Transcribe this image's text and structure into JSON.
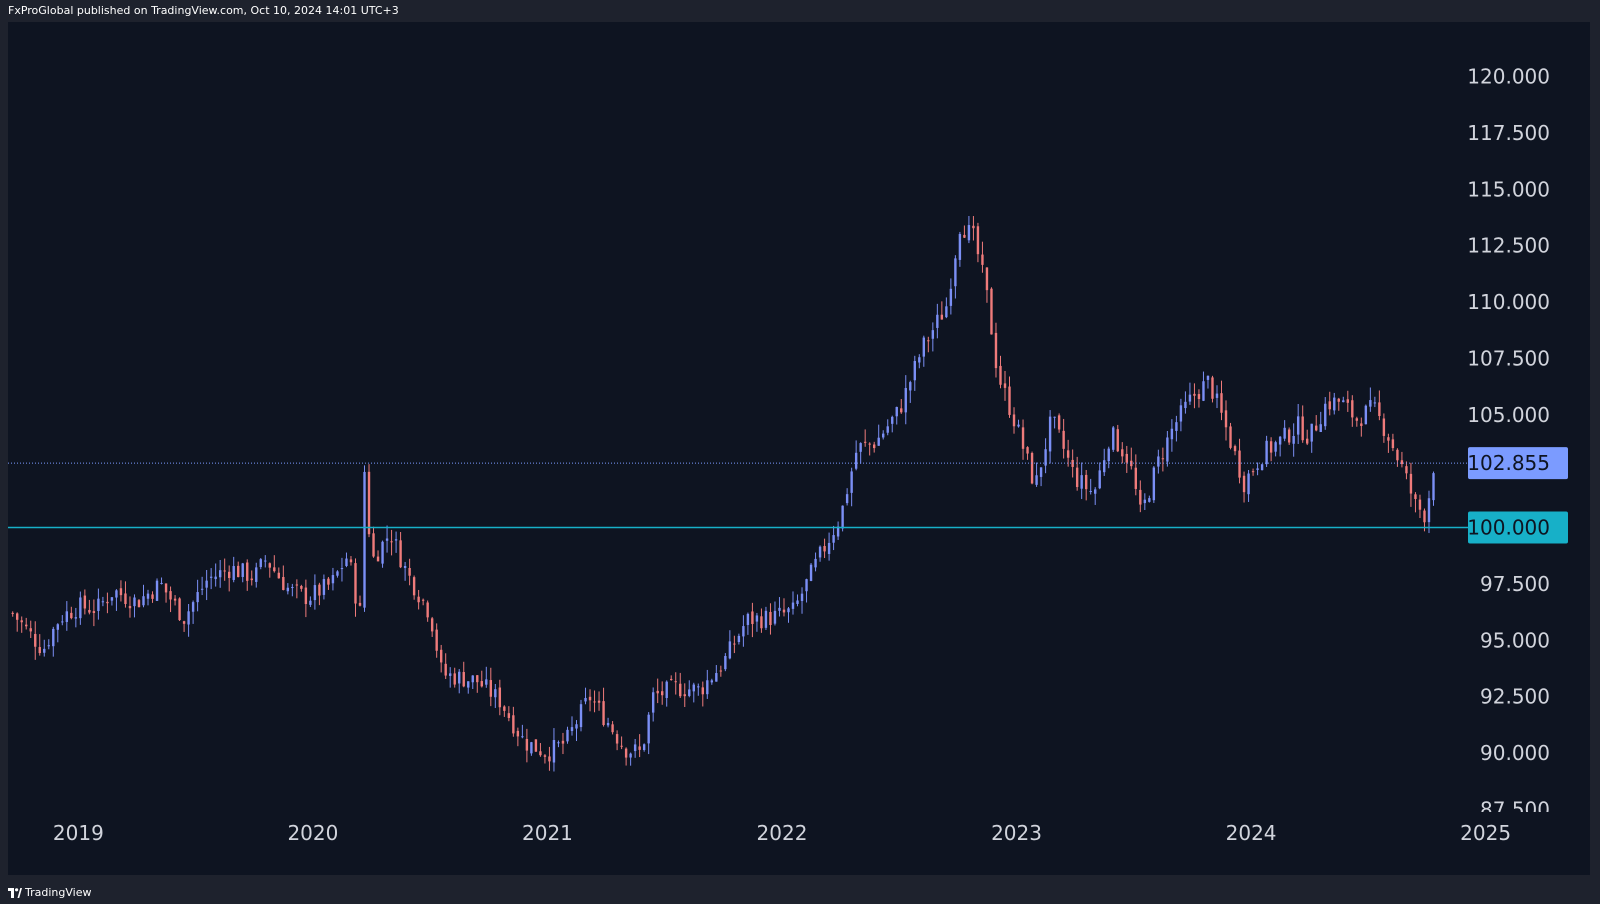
{
  "header": {
    "publish_note": "FxProGlobal published on TradingView.com, Oct 10, 2024 14:01 UTC+3"
  },
  "footer": {
    "brand": "TradingView"
  },
  "colors": {
    "up": "#7b8ff5",
    "down": "#ef7b7b",
    "panel_bg": "#0e1421",
    "axis_text": "#d1d4dc",
    "level_line": "#17b0c8",
    "last_price_bg": "#7b9bff"
  },
  "chart_data": {
    "type": "candlestick",
    "title": "",
    "xlabel": "",
    "ylabel": "",
    "ylim": [
      87.5,
      122.0
    ],
    "xlim": [
      2018.7,
      2025.3
    ],
    "grid": false,
    "y_ticks": [
      "120.000",
      "117.500",
      "115.000",
      "112.500",
      "110.000",
      "107.500",
      "105.000",
      "102.500",
      "100.000",
      "97.500",
      "95.000",
      "92.500",
      "90.000",
      "87.500"
    ],
    "x_ticks": [
      {
        "label": "2019",
        "x": 2019.0
      },
      {
        "label": "2020",
        "x": 2020.0
      },
      {
        "label": "2021",
        "x": 2021.0
      },
      {
        "label": "2022",
        "x": 2022.0
      },
      {
        "label": "2023",
        "x": 2023.0
      },
      {
        "label": "2024",
        "x": 2024.0
      },
      {
        "label": "2025",
        "x": 2025.0
      }
    ],
    "last_price": {
      "value": 102.855,
      "label": "102.855"
    },
    "level": {
      "value": 100.0,
      "label": "100.000"
    },
    "anchors": [
      [
        2018.72,
        96.2
      ],
      [
        2018.8,
        95.2
      ],
      [
        2018.85,
        94.6
      ],
      [
        2018.92,
        96.0
      ],
      [
        2019.0,
        96.5
      ],
      [
        2019.08,
        96.4
      ],
      [
        2019.15,
        97.2
      ],
      [
        2019.25,
        96.7
      ],
      [
        2019.35,
        97.5
      ],
      [
        2019.45,
        96.0
      ],
      [
        2019.55,
        97.7
      ],
      [
        2019.65,
        98.2
      ],
      [
        2019.75,
        97.8
      ],
      [
        2019.8,
        98.6
      ],
      [
        2019.9,
        97.2
      ],
      [
        2019.98,
        96.9
      ],
      [
        2020.08,
        97.5
      ],
      [
        2020.15,
        98.8
      ],
      [
        2020.2,
        96.0
      ],
      [
        2020.22,
        102.5
      ],
      [
        2020.25,
        98.5
      ],
      [
        2020.33,
        99.8
      ],
      [
        2020.4,
        98.0
      ],
      [
        2020.5,
        96.2
      ],
      [
        2020.55,
        93.5
      ],
      [
        2020.7,
        93.2
      ],
      [
        2020.8,
        92.3
      ],
      [
        2020.9,
        90.5
      ],
      [
        2021.0,
        90.0
      ],
      [
        2021.08,
        90.5
      ],
      [
        2021.18,
        92.5
      ],
      [
        2021.25,
        91.5
      ],
      [
        2021.33,
        90.2
      ],
      [
        2021.4,
        90.0
      ],
      [
        2021.45,
        92.5
      ],
      [
        2021.55,
        92.9
      ],
      [
        2021.65,
        92.8
      ],
      [
        2021.75,
        94.0
      ],
      [
        2021.85,
        95.9
      ],
      [
        2021.95,
        96.0
      ],
      [
        2022.05,
        96.3
      ],
      [
        2022.15,
        98.5
      ],
      [
        2022.25,
        100.5
      ],
      [
        2022.32,
        103.5
      ],
      [
        2022.4,
        103.8
      ],
      [
        2022.5,
        105.2
      ],
      [
        2022.6,
        108.0
      ],
      [
        2022.7,
        109.8
      ],
      [
        2022.76,
        113.5
      ],
      [
        2022.82,
        112.8
      ],
      [
        2022.87,
        110.5
      ],
      [
        2022.92,
        106.8
      ],
      [
        2023.0,
        104.5
      ],
      [
        2023.08,
        101.8
      ],
      [
        2023.15,
        104.8
      ],
      [
        2023.25,
        102.2
      ],
      [
        2023.33,
        101.5
      ],
      [
        2023.4,
        104.2
      ],
      [
        2023.48,
        103.0
      ],
      [
        2023.53,
        100.5
      ],
      [
        2023.6,
        102.8
      ],
      [
        2023.67,
        104.5
      ],
      [
        2023.75,
        105.8
      ],
      [
        2023.82,
        106.5
      ],
      [
        2023.9,
        104.2
      ],
      [
        2023.97,
        102.0
      ],
      [
        2024.05,
        103.3
      ],
      [
        2024.12,
        103.8
      ],
      [
        2024.2,
        104.5
      ],
      [
        2024.25,
        104.0
      ],
      [
        2024.32,
        105.5
      ],
      [
        2024.38,
        105.6
      ],
      [
        2024.45,
        104.8
      ],
      [
        2024.52,
        105.3
      ],
      [
        2024.58,
        104.2
      ],
      [
        2024.65,
        102.5
      ],
      [
        2024.7,
        101.0
      ],
      [
        2024.74,
        100.6
      ],
      [
        2024.76,
        101.5
      ],
      [
        2024.78,
        102.9
      ]
    ]
  }
}
